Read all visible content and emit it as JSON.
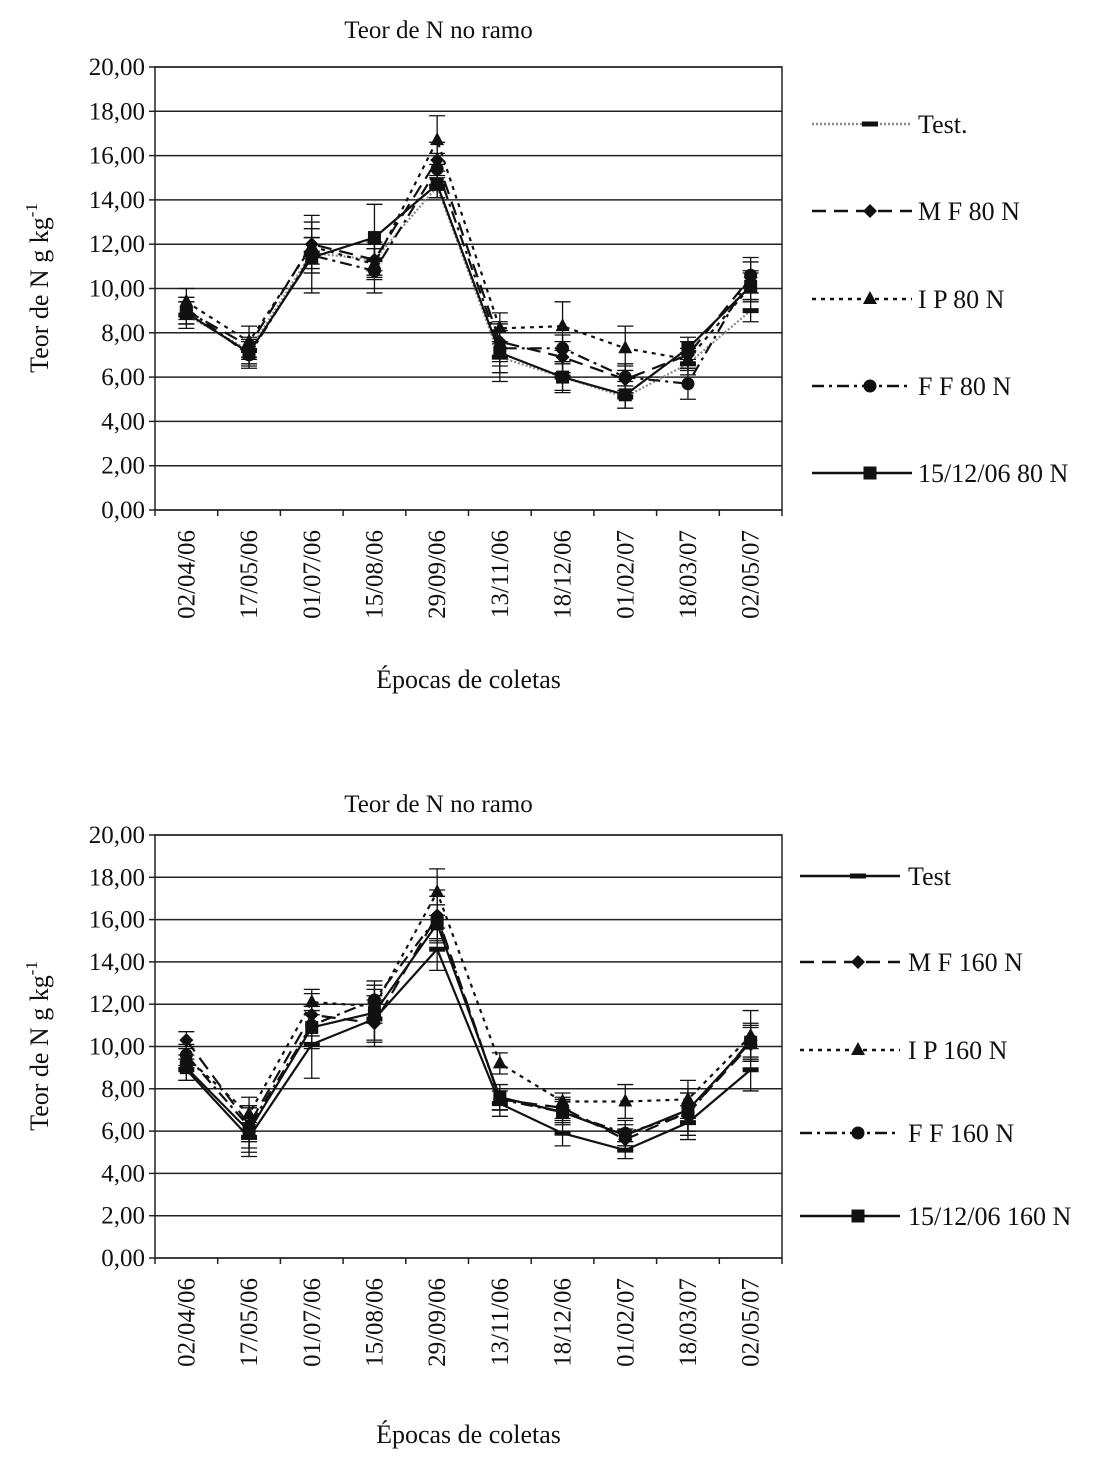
{
  "chart_data": [
    {
      "type": "line",
      "title": "Teor de N no ramo",
      "xlabel": "Épocas de coletas",
      "ylabel": "Teor de N g kg",
      "ylabel_sup": "-1",
      "ylim": [
        0,
        20
      ],
      "yticks": [
        "0,00",
        "2,00",
        "4,00",
        "6,00",
        "8,00",
        "10,00",
        "12,00",
        "14,00",
        "16,00",
        "18,00",
        "20,00"
      ],
      "grid": true,
      "legend_position": "right",
      "categories": [
        "02/04/06",
        "17/05/06",
        "01/07/06",
        "15/08/06",
        "29/09/06",
        "13/11/06",
        "18/12/06",
        "01/02/07",
        "18/03/07",
        "02/05/07"
      ],
      "series": [
        {
          "name": "Test.",
          "marker": "dash",
          "line": "dotted-gray",
          "values": [
            8.8,
            7.2,
            11.6,
            11.3,
            14.6,
            6.9,
            6.0,
            5.1,
            6.6,
            9.0
          ],
          "errors": [
            0.6,
            0.6,
            0.7,
            0.7,
            0.5,
            0.7,
            0.6,
            0.5,
            0.5,
            0.5
          ]
        },
        {
          "name": "M F 80 N",
          "marker": "diamond",
          "line": "dashed",
          "values": [
            9.0,
            7.4,
            12.0,
            11.3,
            15.8,
            7.6,
            6.9,
            5.9,
            7.0,
            10.5
          ],
          "errors": [
            0.6,
            0.6,
            1.3,
            0.8,
            0.8,
            0.9,
            0.7,
            0.6,
            0.6,
            0.7
          ]
        },
        {
          "name": "I P 80 N",
          "marker": "triangle",
          "line": "dotted",
          "values": [
            9.4,
            7.6,
            11.9,
            11.1,
            16.7,
            8.2,
            8.3,
            7.3,
            6.8,
            10.1
          ],
          "errors": [
            0.6,
            0.7,
            0.8,
            0.7,
            1.1,
            0.7,
            1.1,
            1.0,
            0.5,
            0.6
          ]
        },
        {
          "name": "F F 80 N",
          "marker": "circle",
          "line": "dash-dot",
          "values": [
            9.1,
            7.0,
            11.5,
            10.8,
            15.4,
            7.3,
            7.3,
            6.0,
            5.7,
            10.6
          ],
          "errors": [
            0.5,
            0.6,
            0.8,
            1.0,
            0.7,
            0.8,
            0.6,
            0.6,
            0.7,
            0.8
          ]
        },
        {
          "name": "15/12/06 80 N",
          "marker": "square",
          "line": "solid",
          "values": [
            8.9,
            7.1,
            11.4,
            12.3,
            14.7,
            7.1,
            6.0,
            5.2,
            7.3,
            10.1
          ],
          "errors": [
            0.5,
            0.6,
            1.6,
            1.5,
            0.6,
            1.3,
            0.7,
            0.6,
            0.5,
            0.7
          ]
        }
      ]
    },
    {
      "type": "line",
      "title": "Teor de N no ramo",
      "xlabel": "Épocas de coletas",
      "ylabel": "Teor de N g kg",
      "ylabel_sup": "-1",
      "ylim": [
        0,
        20
      ],
      "yticks": [
        "0,00",
        "2,00",
        "4,00",
        "6,00",
        "8,00",
        "10,00",
        "12,00",
        "14,00",
        "16,00",
        "18,00",
        "20,00"
      ],
      "grid": true,
      "legend_position": "right",
      "categories": [
        "02/04/06",
        "17/05/06",
        "01/07/06",
        "15/08/06",
        "29/09/06",
        "13/11/06",
        "18/12/06",
        "01/02/07",
        "18/03/07",
        "02/05/07"
      ],
      "series": [
        {
          "name": "Test",
          "marker": "dash",
          "line": "solid",
          "values": [
            8.9,
            5.7,
            10.1,
            11.3,
            14.6,
            7.3,
            5.9,
            5.1,
            6.4,
            8.9
          ],
          "errors": [
            0.5,
            0.7,
            1.6,
            1.1,
            1.0,
            0.6,
            0.6,
            0.4,
            0.8,
            1.0
          ]
        },
        {
          "name": "M F 160 N",
          "marker": "diamond",
          "line": "dashed",
          "values": [
            10.3,
            6.3,
            11.5,
            11.1,
            16.2,
            7.5,
            7.1,
            5.6,
            6.9,
            10.1
          ],
          "errors": [
            0.4,
            0.8,
            1.0,
            1.1,
            1.2,
            0.5,
            0.5,
            0.5,
            0.9,
            0.8
          ]
        },
        {
          "name": "I P 160 N",
          "marker": "triangle",
          "line": "dotted",
          "values": [
            9.5,
            6.8,
            12.1,
            11.9,
            17.3,
            9.2,
            7.4,
            7.4,
            7.5,
            10.5
          ],
          "errors": [
            0.5,
            0.8,
            0.6,
            0.8,
            1.1,
            0.5,
            0.4,
            0.8,
            0.9,
            1.2
          ]
        },
        {
          "name": "F F 160  N",
          "marker": "circle",
          "line": "dash-dot",
          "values": [
            9.6,
            6.2,
            11.0,
            12.2,
            16.1,
            7.5,
            6.9,
            5.9,
            6.8,
            10.3
          ],
          "errors": [
            0.5,
            1.0,
            0.9,
            0.9,
            1.0,
            0.5,
            0.5,
            0.6,
            1.0,
            0.8
          ]
        },
        {
          "name": "15/12/06  160 N",
          "marker": "square",
          "line": "solid",
          "values": [
            9.0,
            6.0,
            10.9,
            11.6,
            15.8,
            7.6,
            6.9,
            5.8,
            7.0,
            10.2
          ],
          "errors": [
            0.6,
            1.2,
            1.0,
            1.3,
            0.9,
            0.6,
            0.6,
            0.5,
            1.0,
            0.8
          ]
        }
      ]
    }
  ]
}
